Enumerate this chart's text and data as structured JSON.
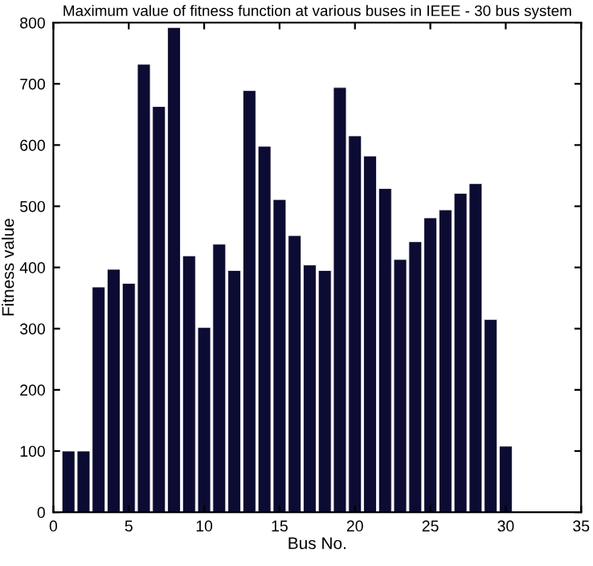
{
  "chart_data": {
    "type": "bar",
    "title": "Maximum value of fitness function at various buses in IEEE - 30 bus system",
    "xlabel": "Bus No.",
    "ylabel": "Fitness value",
    "x": [
      1,
      2,
      3,
      4,
      5,
      6,
      7,
      8,
      9,
      10,
      11,
      12,
      13,
      14,
      15,
      16,
      17,
      18,
      19,
      20,
      21,
      22,
      23,
      24,
      25,
      26,
      27,
      28,
      29,
      30
    ],
    "values": [
      100,
      100,
      368,
      397,
      374,
      732,
      663,
      792,
      419,
      302,
      438,
      395,
      689,
      598,
      511,
      452,
      404,
      395,
      694,
      615,
      582,
      529,
      413,
      442,
      481,
      494,
      521,
      537,
      315,
      108
    ],
    "color": "#0b0b33",
    "xlim": [
      0,
      35
    ],
    "xticks": [
      0,
      5,
      10,
      15,
      20,
      25,
      30,
      35
    ],
    "ylim": [
      0,
      800
    ],
    "yticks": [
      0,
      100,
      200,
      300,
      400,
      500,
      600,
      700,
      800
    ],
    "grid": false,
    "legend": false
  }
}
